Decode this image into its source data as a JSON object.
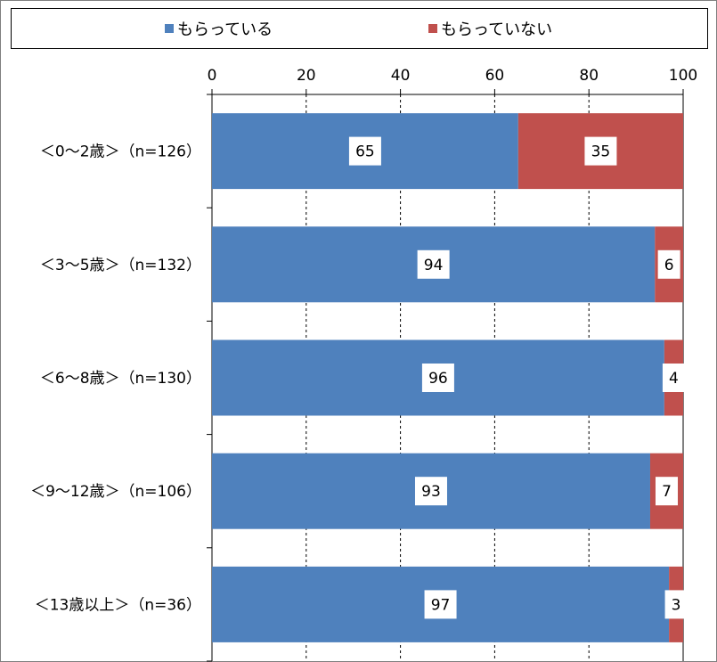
{
  "chart_data": {
    "type": "bar",
    "orientation": "horizontal",
    "stacked": true,
    "categories": [
      "＜0～2歳＞（n=126）",
      "＜3～5歳＞（n=132）",
      "＜6～8歳＞（n=130）",
      "＜9～12歳＞（n=106）",
      "＜13歳以上＞（n=36）"
    ],
    "series": [
      {
        "name": "もらっている",
        "values": [
          65,
          94,
          96,
          93,
          97
        ],
        "color": "#4f81bd"
      },
      {
        "name": "もらっていない",
        "values": [
          35,
          6,
          4,
          7,
          3
        ],
        "color": "#c0504d"
      }
    ],
    "xlim": [
      0,
      100
    ],
    "xticks": [
      0,
      20,
      40,
      60,
      80,
      100
    ],
    "xtick_labels": [
      "0",
      "20",
      "40",
      "60",
      "80",
      "100"
    ],
    "grid": true,
    "legend_position": "top"
  }
}
